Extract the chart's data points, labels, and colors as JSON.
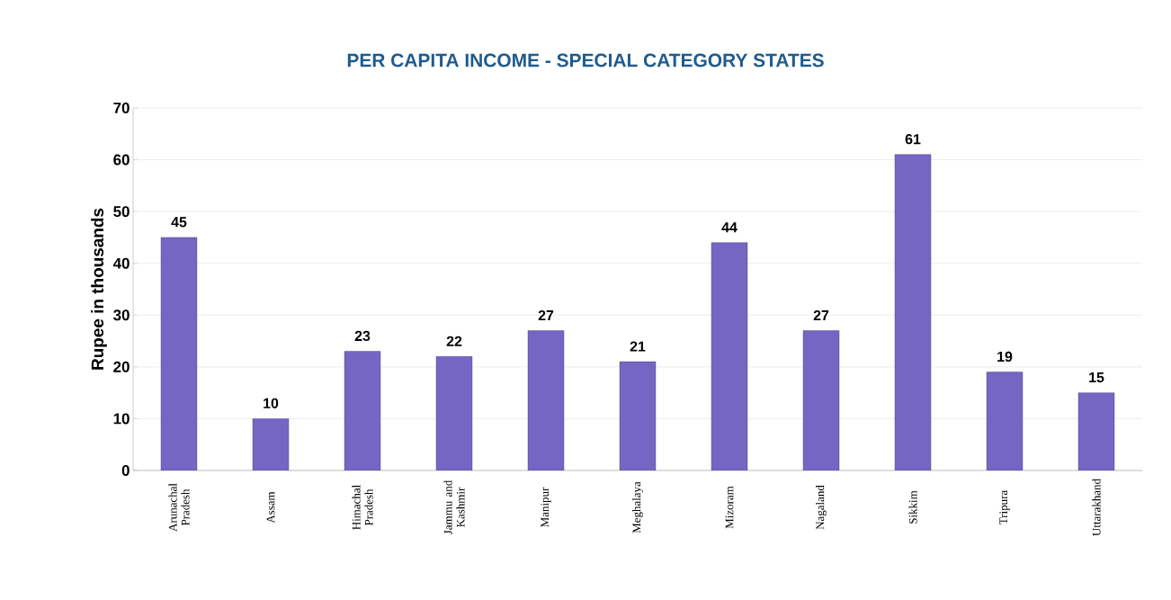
{
  "chart_data": {
    "type": "bar",
    "title": "PER CAPITA INCOME - SPECIAL CATEGORY STATES",
    "ylabel": "Rupee in thousands",
    "categories": [
      "Arunachal Pradesh",
      "Assam",
      "Himachal Pradesh",
      "Jammu and Kashmir",
      "Manipur",
      "Meghalaya",
      "Mizoram",
      "Nagaland",
      "Sikkim",
      "Tripura",
      "Uttarakhand"
    ],
    "values": [
      45,
      10,
      23,
      22,
      27,
      21,
      44,
      27,
      61,
      19,
      15
    ],
    "color": "#7566c4",
    "ylim": [
      0,
      70
    ],
    "yticks": [
      0,
      10,
      20,
      30,
      40,
      50,
      60,
      70
    ],
    "grid": "y",
    "data_labels": true
  }
}
